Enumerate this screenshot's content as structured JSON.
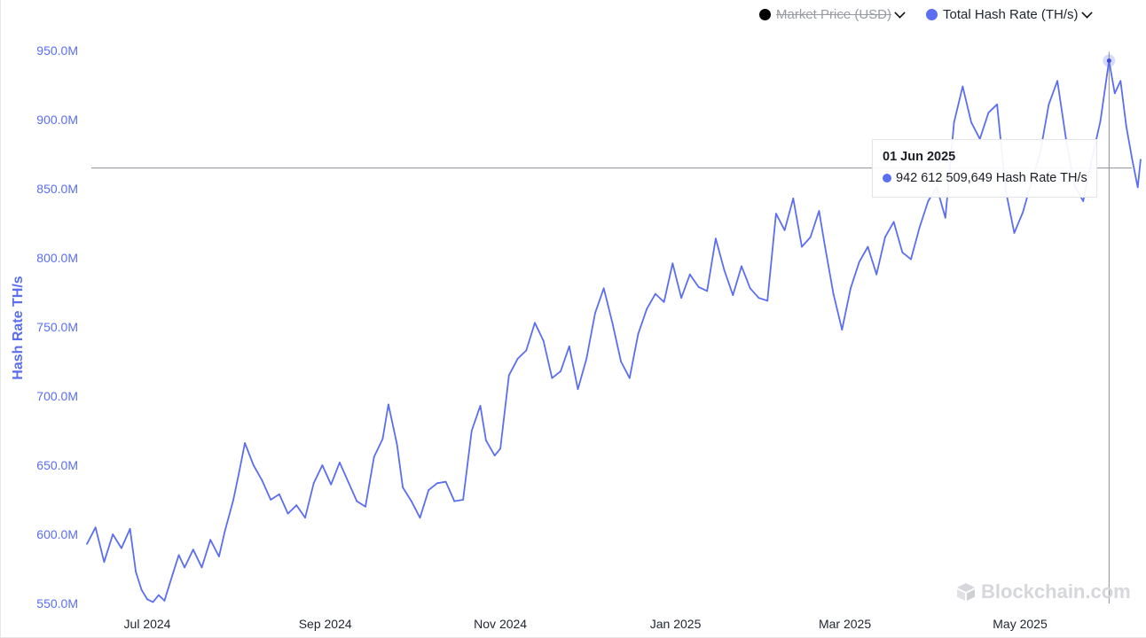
{
  "legend": {
    "market_price": {
      "label": "Market Price (USD)",
      "color": "#000000",
      "hidden": true,
      "icon": "chevron-down-icon"
    },
    "hash_rate": {
      "label": "Total Hash Rate (TH/s)",
      "color": "#5b6ef0",
      "icon": "chevron-down-icon"
    }
  },
  "tooltip": {
    "date": "01 Jun 2025",
    "value": "942 612 509,649",
    "unit": "Hash Rate TH/s",
    "color": "#5b6ef0"
  },
  "watermark": {
    "text": "Blockchain.com",
    "icon": "blockchain-logo-icon"
  },
  "chart_data": {
    "type": "line",
    "ylabel": "Hash Rate TH/s",
    "xlabel": "",
    "ylim": [
      550000000,
      950000000
    ],
    "y_ticks": [
      {
        "value": 950000000,
        "label": "950.0M"
      },
      {
        "value": 900000000,
        "label": "900.0M"
      },
      {
        "value": 850000000,
        "label": "850.0M"
      },
      {
        "value": 800000000,
        "label": "800.0M"
      },
      {
        "value": 750000000,
        "label": "750.0M"
      },
      {
        "value": 700000000,
        "label": "700.0M"
      },
      {
        "value": 650000000,
        "label": "650.0M"
      },
      {
        "value": 600000000,
        "label": "600.0M"
      },
      {
        "value": 550000000,
        "label": "550.0M"
      }
    ],
    "x_ticks": [
      {
        "date": "2024-07-01",
        "label": "Jul 2024"
      },
      {
        "date": "2024-09-01",
        "label": "Sep 2024"
      },
      {
        "date": "2024-11-01",
        "label": "Nov 2024"
      },
      {
        "date": "2025-01-01",
        "label": "Jan 2025"
      },
      {
        "date": "2025-03-01",
        "label": "Mar 2025"
      },
      {
        "date": "2025-05-01",
        "label": "May 2025"
      }
    ],
    "crosshair": {
      "date": "2025-06-01",
      "value": 942612509.649,
      "y_readout": 865000000
    },
    "grid": false,
    "legend_position": "top-right",
    "series": [
      {
        "name": "Total Hash Rate (TH/s)",
        "color": "#5b6ef0",
        "points": [
          [
            "2024-06-10",
            593000000
          ],
          [
            "2024-06-13",
            605000000
          ],
          [
            "2024-06-16",
            580000000
          ],
          [
            "2024-06-19",
            600000000
          ],
          [
            "2024-06-22",
            590000000
          ],
          [
            "2024-06-25",
            604000000
          ],
          [
            "2024-06-27",
            573000000
          ],
          [
            "2024-06-29",
            560000000
          ],
          [
            "2024-07-01",
            553000000
          ],
          [
            "2024-07-03",
            551000000
          ],
          [
            "2024-07-05",
            556000000
          ],
          [
            "2024-07-07",
            552000000
          ],
          [
            "2024-07-10",
            572000000
          ],
          [
            "2024-07-12",
            585000000
          ],
          [
            "2024-07-14",
            576000000
          ],
          [
            "2024-07-17",
            589000000
          ],
          [
            "2024-07-20",
            576000000
          ],
          [
            "2024-07-23",
            596000000
          ],
          [
            "2024-07-26",
            584000000
          ],
          [
            "2024-07-28",
            602000000
          ],
          [
            "2024-07-31",
            625000000
          ],
          [
            "2024-08-02",
            645000000
          ],
          [
            "2024-08-04",
            666000000
          ],
          [
            "2024-08-07",
            650000000
          ],
          [
            "2024-08-10",
            639000000
          ],
          [
            "2024-08-13",
            625000000
          ],
          [
            "2024-08-16",
            629000000
          ],
          [
            "2024-08-19",
            615000000
          ],
          [
            "2024-08-22",
            621000000
          ],
          [
            "2024-08-25",
            612000000
          ],
          [
            "2024-08-28",
            637000000
          ],
          [
            "2024-08-31",
            650000000
          ],
          [
            "2024-09-03",
            636000000
          ],
          [
            "2024-09-06",
            652000000
          ],
          [
            "2024-09-09",
            638000000
          ],
          [
            "2024-09-12",
            624000000
          ],
          [
            "2024-09-15",
            620000000
          ],
          [
            "2024-09-18",
            656000000
          ],
          [
            "2024-09-21",
            669000000
          ],
          [
            "2024-09-23",
            694000000
          ],
          [
            "2024-09-26",
            665000000
          ],
          [
            "2024-09-28",
            634000000
          ],
          [
            "2024-10-01",
            624000000
          ],
          [
            "2024-10-04",
            612000000
          ],
          [
            "2024-10-07",
            632000000
          ],
          [
            "2024-10-10",
            637000000
          ],
          [
            "2024-10-13",
            638000000
          ],
          [
            "2024-10-16",
            624000000
          ],
          [
            "2024-10-19",
            625000000
          ],
          [
            "2024-10-22",
            675000000
          ],
          [
            "2024-10-25",
            693000000
          ],
          [
            "2024-10-27",
            668000000
          ],
          [
            "2024-10-30",
            657000000
          ],
          [
            "2024-11-01",
            662000000
          ],
          [
            "2024-11-04",
            715000000
          ],
          [
            "2024-11-07",
            727000000
          ],
          [
            "2024-11-10",
            733000000
          ],
          [
            "2024-11-13",
            753000000
          ],
          [
            "2024-11-16",
            740000000
          ],
          [
            "2024-11-19",
            713000000
          ],
          [
            "2024-11-22",
            718000000
          ],
          [
            "2024-11-25",
            736000000
          ],
          [
            "2024-11-28",
            705000000
          ],
          [
            "2024-12-01",
            727000000
          ],
          [
            "2024-12-04",
            760000000
          ],
          [
            "2024-12-07",
            778000000
          ],
          [
            "2024-12-10",
            753000000
          ],
          [
            "2024-12-13",
            725000000
          ],
          [
            "2024-12-16",
            713000000
          ],
          [
            "2024-12-19",
            745000000
          ],
          [
            "2024-12-22",
            763000000
          ],
          [
            "2024-12-25",
            774000000
          ],
          [
            "2024-12-28",
            768000000
          ],
          [
            "2024-12-31",
            796000000
          ],
          [
            "2025-01-03",
            771000000
          ],
          [
            "2025-01-06",
            788000000
          ],
          [
            "2025-01-09",
            779000000
          ],
          [
            "2025-01-12",
            776000000
          ],
          [
            "2025-01-15",
            814000000
          ],
          [
            "2025-01-18",
            791000000
          ],
          [
            "2025-01-21",
            773000000
          ],
          [
            "2025-01-24",
            794000000
          ],
          [
            "2025-01-27",
            778000000
          ],
          [
            "2025-01-30",
            771000000
          ],
          [
            "2025-02-02",
            769000000
          ],
          [
            "2025-02-05",
            832000000
          ],
          [
            "2025-02-08",
            820000000
          ],
          [
            "2025-02-11",
            843000000
          ],
          [
            "2025-02-14",
            808000000
          ],
          [
            "2025-02-17",
            815000000
          ],
          [
            "2025-02-20",
            834000000
          ],
          [
            "2025-02-22",
            809000000
          ],
          [
            "2025-02-25",
            774000000
          ],
          [
            "2025-02-28",
            748000000
          ],
          [
            "2025-03-03",
            778000000
          ],
          [
            "2025-03-06",
            797000000
          ],
          [
            "2025-03-09",
            808000000
          ],
          [
            "2025-03-12",
            788000000
          ],
          [
            "2025-03-15",
            815000000
          ],
          [
            "2025-03-18",
            826000000
          ],
          [
            "2025-03-21",
            804000000
          ],
          [
            "2025-03-24",
            799000000
          ],
          [
            "2025-03-27",
            822000000
          ],
          [
            "2025-03-30",
            841000000
          ],
          [
            "2025-04-02",
            851000000
          ],
          [
            "2025-04-05",
            829000000
          ],
          [
            "2025-04-08",
            898000000
          ],
          [
            "2025-04-11",
            924000000
          ],
          [
            "2025-04-14",
            898000000
          ],
          [
            "2025-04-17",
            886000000
          ],
          [
            "2025-04-20",
            905000000
          ],
          [
            "2025-04-23",
            911000000
          ],
          [
            "2025-04-26",
            849000000
          ],
          [
            "2025-04-29",
            818000000
          ],
          [
            "2025-05-02",
            833000000
          ],
          [
            "2025-05-05",
            855000000
          ],
          [
            "2025-05-08",
            876000000
          ],
          [
            "2025-05-11",
            911000000
          ],
          [
            "2025-05-14",
            928000000
          ],
          [
            "2025-05-17",
            886000000
          ],
          [
            "2025-05-20",
            852000000
          ],
          [
            "2025-05-23",
            841000000
          ],
          [
            "2025-05-26",
            871000000
          ],
          [
            "2025-05-29",
            899000000
          ],
          [
            "2025-06-01",
            942612509.649
          ],
          [
            "2025-06-03",
            919000000
          ],
          [
            "2025-06-05",
            928000000
          ],
          [
            "2025-06-07",
            895000000
          ],
          [
            "2025-06-09",
            872000000
          ],
          [
            "2025-06-11",
            851000000
          ],
          [
            "2025-06-12",
            871000000
          ]
        ]
      }
    ]
  }
}
